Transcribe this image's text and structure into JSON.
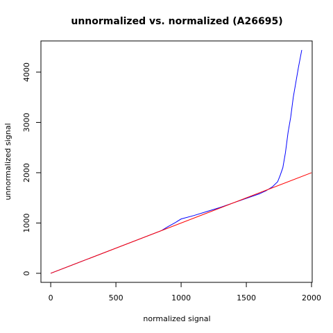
{
  "chart_data": {
    "type": "line",
    "title": "unnormalized vs. normalized (A26695)",
    "x_label": "normalized signal",
    "y_label": "unnormalized signal",
    "xlim": [
      -75,
      2005
    ],
    "ylim": [
      -180,
      4620
    ],
    "xticks": [
      0,
      500,
      1000,
      1500,
      2000
    ],
    "yticks": [
      0,
      1000,
      2000,
      3000,
      4000
    ],
    "series": [
      {
        "color": "#0000ff",
        "x": [
          0,
          500,
          850,
          900,
          950,
          1000,
          1100,
          1200,
          1300,
          1400,
          1500,
          1600,
          1650,
          1700,
          1740,
          1760,
          1780,
          1800,
          1820,
          1840,
          1860,
          1880,
          1900,
          1925
        ],
        "values": [
          0,
          500,
          850,
          930,
          1000,
          1080,
          1150,
          1230,
          1310,
          1400,
          1490,
          1580,
          1640,
          1720,
          1820,
          1950,
          2100,
          2400,
          2800,
          3100,
          3500,
          3800,
          4100,
          4440
        ]
      },
      {
        "color": "#ff0000",
        "x": [
          0,
          2000
        ],
        "values": [
          0,
          2000
        ]
      }
    ]
  }
}
